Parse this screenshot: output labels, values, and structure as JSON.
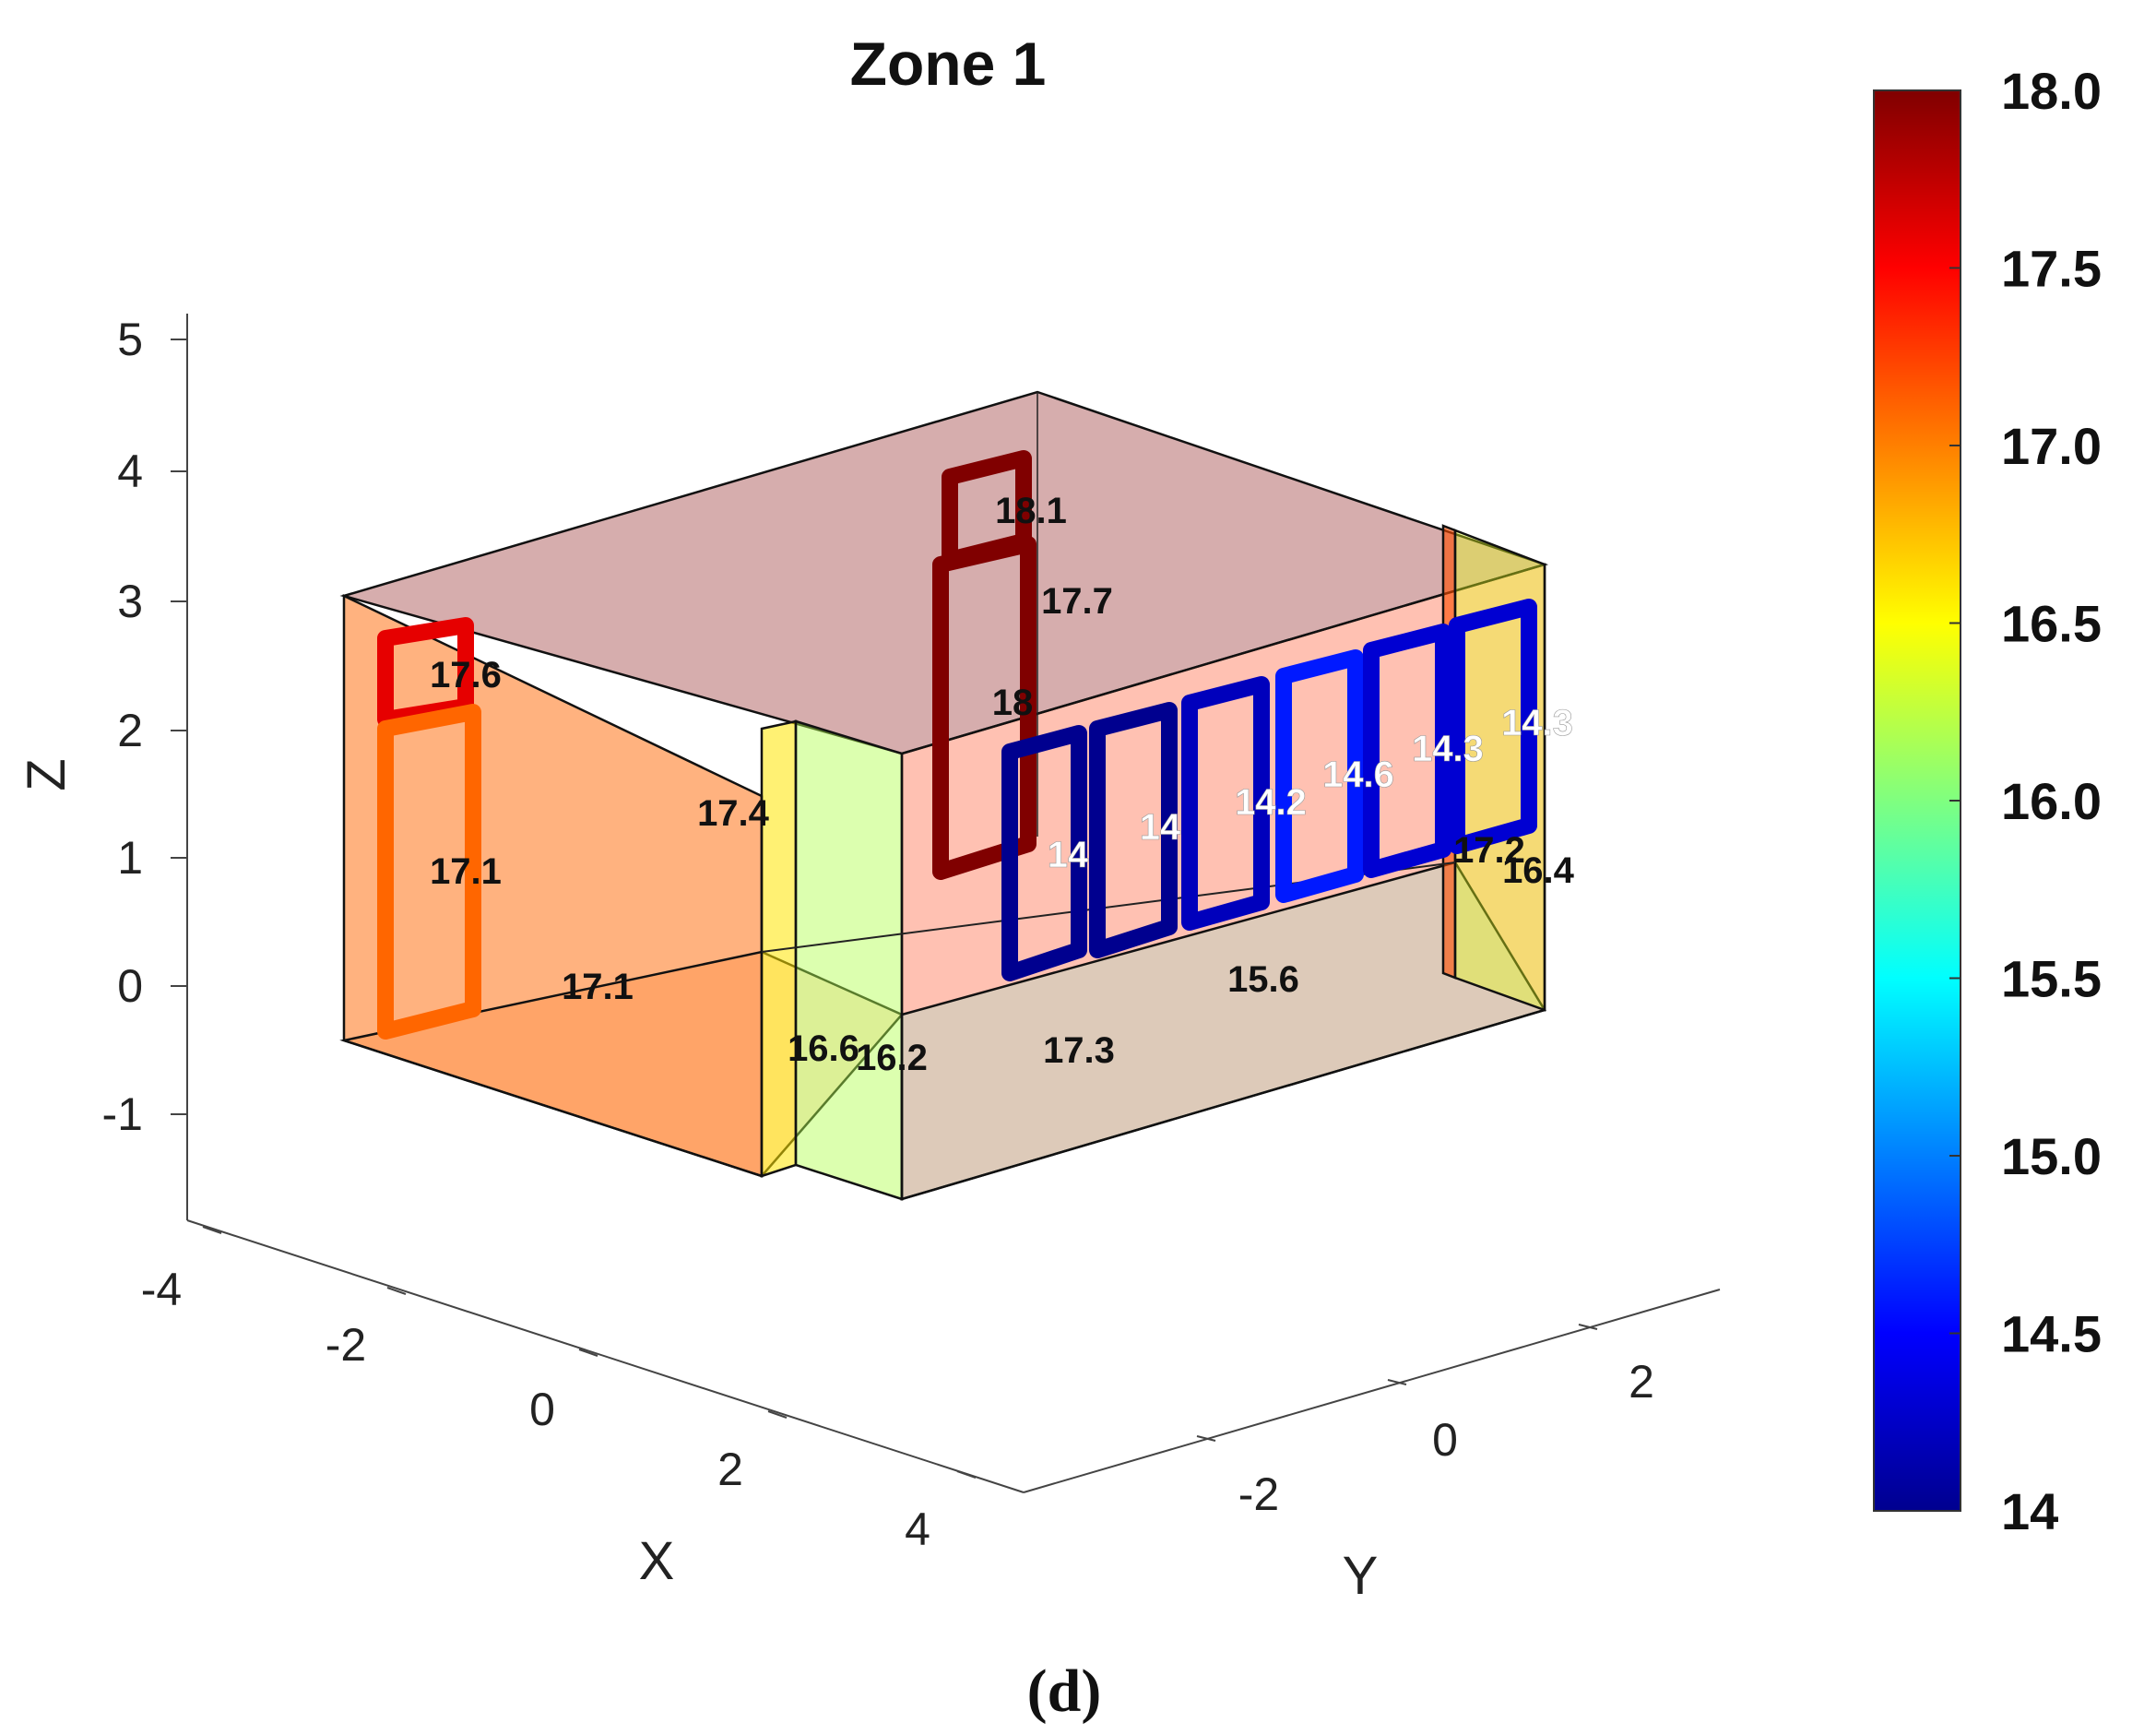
{
  "panel_label": "(d)",
  "chart_data": {
    "type": "3d-surface-colormap",
    "title": "Zone 1",
    "xlabel": "X",
    "ylabel": "Y",
    "zlabel": "Z",
    "x_ticks": [
      "-4",
      "-2",
      "0",
      "2",
      "4"
    ],
    "y_ticks": [
      "-2",
      "0",
      "2"
    ],
    "z_ticks": [
      "5",
      "4",
      "3",
      "2",
      "1",
      "0",
      "-1"
    ],
    "xlim": [
      -4,
      4
    ],
    "ylim": [
      -3,
      3
    ],
    "zlim": [
      -1,
      5
    ],
    "colorbar": {
      "ticks": [
        "18.0",
        "17.5",
        "17.0",
        "16.5",
        "16.0",
        "15.5",
        "15.0",
        "14.5",
        "14"
      ],
      "range": [
        14,
        18
      ],
      "colormap": "jet"
    },
    "surfaces": [
      {
        "name": "ceiling",
        "value": 18.1
      },
      {
        "name": "west wall",
        "value": 17.1
      },
      {
        "name": "inner wall",
        "value": 17.4
      },
      {
        "name": "floor",
        "value": 17.1
      },
      {
        "name": "wall strip",
        "value": 16.6
      },
      {
        "name": "front wall",
        "value": 16.2
      },
      {
        "name": "south wall",
        "value": 17.3
      },
      {
        "name": "floor east",
        "value": 15.6
      },
      {
        "name": "east strip",
        "value": 17.2
      },
      {
        "name": "east wall",
        "value": 16.4
      }
    ],
    "openings": [
      {
        "name": "west window",
        "value": 17.6
      },
      {
        "name": "west door",
        "value": 17.1
      },
      {
        "name": "interior window",
        "value": 18.1
      },
      {
        "name": "interior door upper",
        "value": 17.7
      },
      {
        "name": "interior door",
        "value": 18
      },
      {
        "name": "window 1",
        "value": 14
      },
      {
        "name": "window 2",
        "value": 14
      },
      {
        "name": "window 3",
        "value": 14.2
      },
      {
        "name": "window 4",
        "value": 14.6
      },
      {
        "name": "window 5",
        "value": 14.3
      },
      {
        "name": "window 6",
        "value": 14.3
      }
    ],
    "value_labels": [
      {
        "text": "18.1",
        "tone": "dark"
      },
      {
        "text": "17.7",
        "tone": "dark"
      },
      {
        "text": "17.6",
        "tone": "dark"
      },
      {
        "text": "18",
        "tone": "dark"
      },
      {
        "text": "17.4",
        "tone": "dark"
      },
      {
        "text": "17.1",
        "tone": "dark"
      },
      {
        "text": "17.1",
        "tone": "dark"
      },
      {
        "text": "16.6",
        "tone": "dark"
      },
      {
        "text": "16.2",
        "tone": "dark"
      },
      {
        "text": "17.3",
        "tone": "dark"
      },
      {
        "text": "15.6",
        "tone": "dark"
      },
      {
        "text": "17.2",
        "tone": "dark"
      },
      {
        "text": "16.4",
        "tone": "dark"
      },
      {
        "text": "14",
        "tone": "light"
      },
      {
        "text": "14",
        "tone": "light"
      },
      {
        "text": "14.2",
        "tone": "light"
      },
      {
        "text": "14.6",
        "tone": "light"
      },
      {
        "text": "14.3",
        "tone": "light"
      },
      {
        "text": "14.3",
        "tone": "light"
      }
    ]
  }
}
